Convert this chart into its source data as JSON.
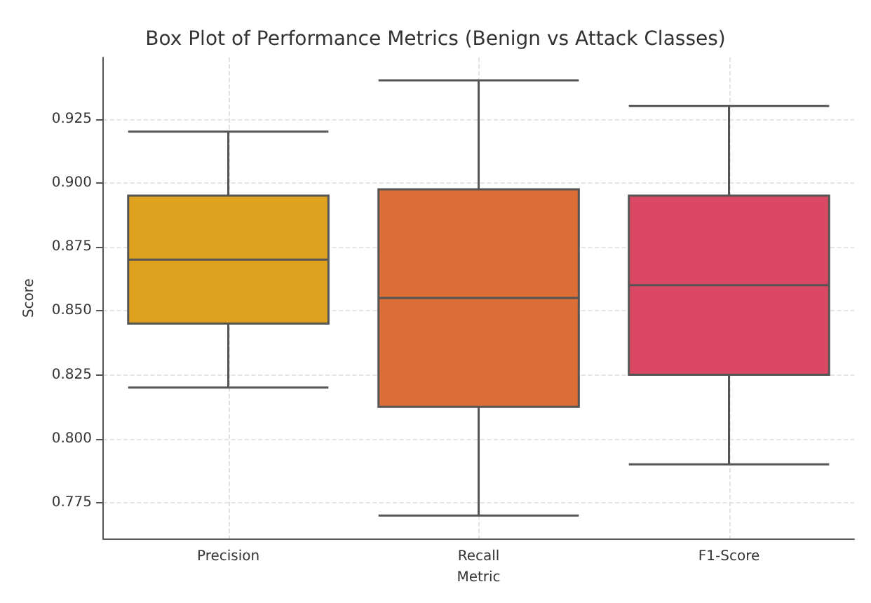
{
  "chart_data": {
    "type": "box",
    "title": "Box Plot of Performance Metrics (Benign vs Attack Classes)",
    "xlabel": "Metric",
    "ylabel": "Score",
    "categories": [
      "Precision",
      "Recall",
      "F1-Score"
    ],
    "boxes": [
      {
        "low": 0.82,
        "q1": 0.845,
        "median": 0.87,
        "q3": 0.895,
        "high": 0.92
      },
      {
        "low": 0.77,
        "q1": 0.8125,
        "median": 0.855,
        "q3": 0.8975,
        "high": 0.94
      },
      {
        "low": 0.79,
        "q1": 0.825,
        "median": 0.86,
        "q3": 0.895,
        "high": 0.93
      }
    ],
    "colors": [
      "#dfa21f",
      "#db6e37",
      "#da4863"
    ],
    "ylim": [
      0.761,
      0.949
    ],
    "yticks": [
      0.775,
      {
        "value": 0.8,
        "label": "0.800"
      },
      0.825,
      {
        "value": 0.85,
        "label": "0.850"
      },
      0.875,
      {
        "value": 0.9,
        "label": "0.900"
      },
      0.925
    ],
    "grid": true
  }
}
